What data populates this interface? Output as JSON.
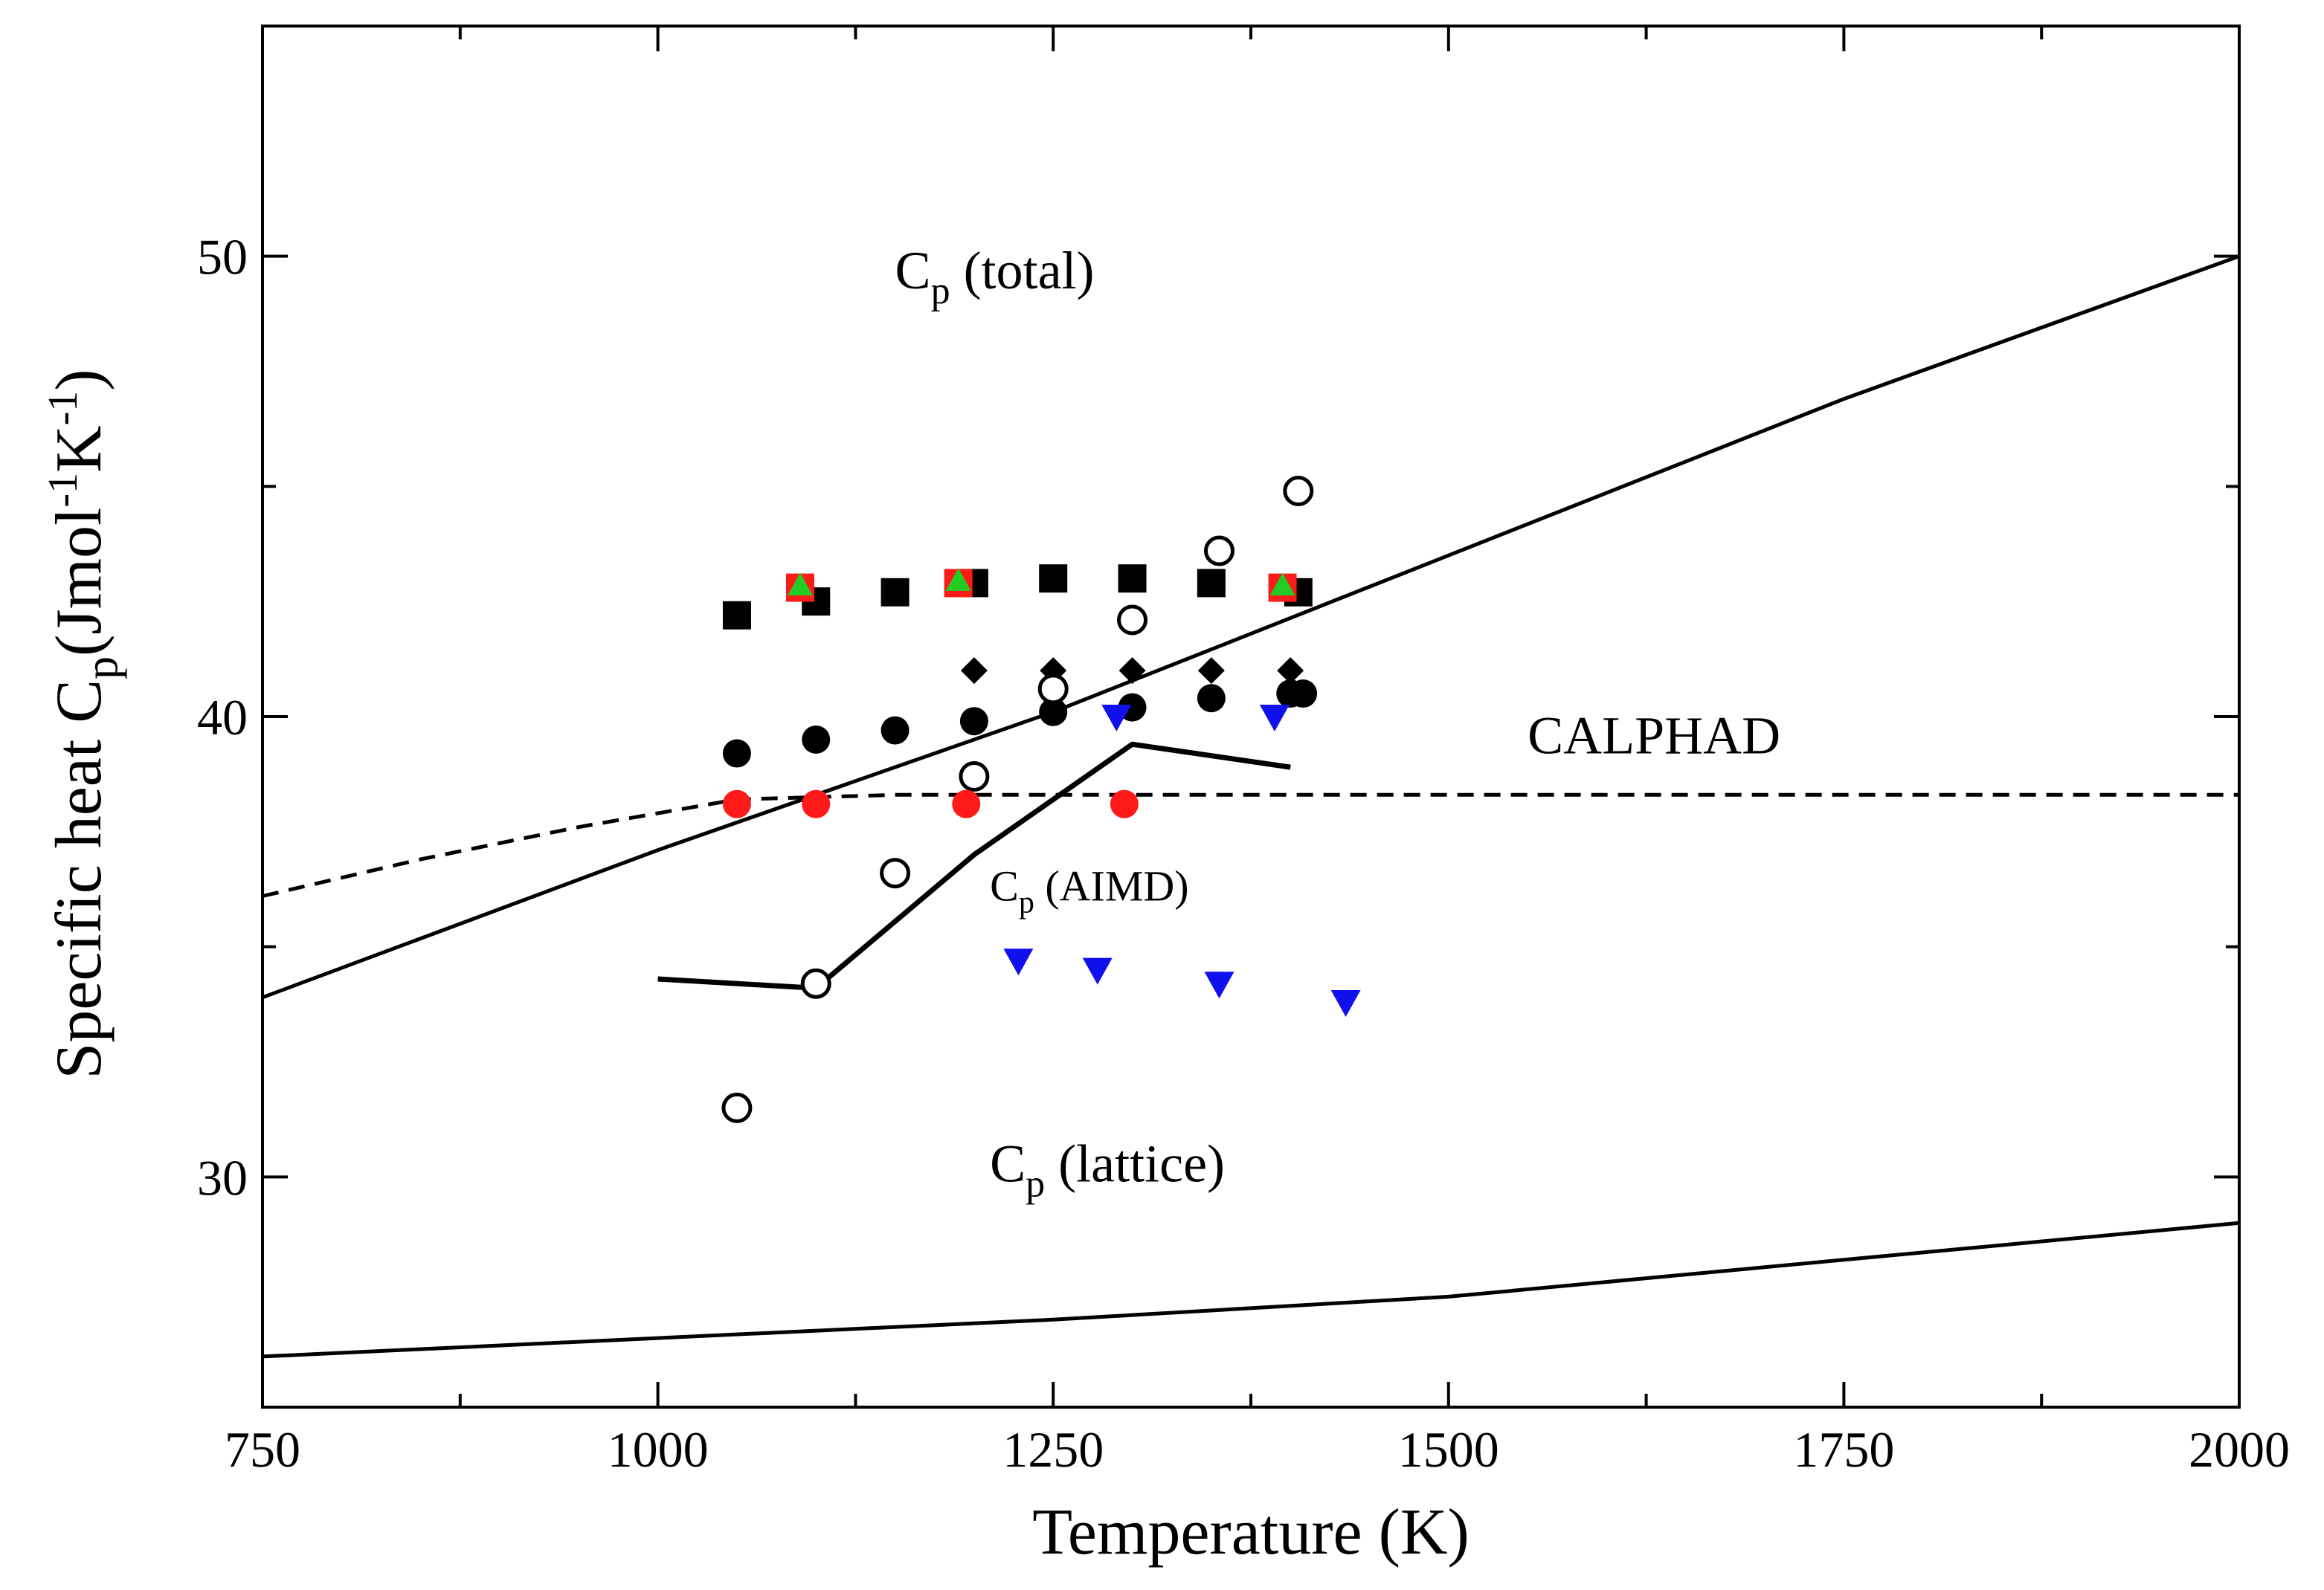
{
  "chart_data": {
    "type": "scatter",
    "title": "",
    "xlabel": "Temperature (K)",
    "ylabel": {
      "main": "Specific heat C",
      "sub": "p",
      "units": "(Jmol",
      "exp1": "-1",
      "k": "K",
      "exp2": "-1",
      "close": ")"
    },
    "xlim": [
      750,
      2000
    ],
    "ylim": [
      25,
      55
    ],
    "x_ticks": [
      750,
      1000,
      1250,
      1500,
      1750,
      2000
    ],
    "y_ticks": [
      30,
      40,
      50
    ],
    "grid": false,
    "colors": {
      "black": "#000000",
      "red": "#ff1a1a",
      "green": "#22cc22",
      "blue": "#1010ee"
    },
    "lines": [
      {
        "name": "Cp (total)",
        "style": "solid",
        "x": [
          750,
          1000,
          1250,
          1500,
          1750,
          2000
        ],
        "y": [
          33.9,
          37.1,
          40.1,
          43.5,
          46.9,
          50.0
        ]
      },
      {
        "name": "CALPHAD",
        "style": "dashed",
        "x": [
          750,
          850,
          950,
          1050,
          1150,
          1250,
          1500,
          1750,
          2000
        ],
        "y": [
          36.1,
          36.9,
          37.6,
          38.2,
          38.3,
          38.3,
          38.3,
          38.3,
          38.3
        ]
      },
      {
        "name": "Cp (AIMD)",
        "style": "solid-thick",
        "x": [
          1000,
          1100,
          1200,
          1300,
          1400
        ],
        "y": [
          34.3,
          34.1,
          37.0,
          39.4,
          38.9
        ]
      },
      {
        "name": "Cp (lattice)",
        "style": "solid",
        "x": [
          750,
          1000,
          1250,
          1500,
          1750,
          2000
        ],
        "y": [
          26.1,
          26.5,
          26.9,
          27.4,
          28.2,
          29.0
        ]
      }
    ],
    "series": [
      {
        "name": "black squares",
        "marker": "square",
        "color": "black",
        "x": [
          1050,
          1100,
          1150,
          1200,
          1250,
          1300,
          1350,
          1405
        ],
        "y": [
          42.2,
          42.5,
          42.7,
          42.9,
          43.0,
          43.0,
          42.9,
          42.7
        ]
      },
      {
        "name": "red squares",
        "marker": "square",
        "color": "red",
        "x": [
          1090,
          1190,
          1395
        ],
        "y": [
          42.8,
          42.9,
          42.8
        ]
      },
      {
        "name": "green triangles",
        "marker": "triangle-up",
        "color": "green",
        "x": [
          1090,
          1190,
          1395
        ],
        "y": [
          42.85,
          42.95,
          42.85
        ]
      },
      {
        "name": "black diamonds",
        "marker": "diamond",
        "color": "black",
        "x": [
          1200,
          1250,
          1300,
          1350,
          1400
        ],
        "y": [
          41.0,
          41.0,
          41.0,
          41.0,
          41.0
        ]
      },
      {
        "name": "black filled circles",
        "marker": "circle-filled",
        "color": "black",
        "x": [
          1050,
          1100,
          1150,
          1200,
          1250,
          1300,
          1350,
          1400,
          1408
        ],
        "y": [
          39.2,
          39.5,
          39.7,
          39.9,
          40.1,
          40.2,
          40.4,
          40.5,
          40.5
        ]
      },
      {
        "name": "open circles",
        "marker": "circle-open",
        "color": "black",
        "x": [
          1050,
          1100,
          1150,
          1200,
          1250,
          1300,
          1355,
          1405
        ],
        "y": [
          31.5,
          34.2,
          36.6,
          38.7,
          40.6,
          42.1,
          43.6,
          44.9
        ]
      },
      {
        "name": "red circles",
        "marker": "circle-filled",
        "color": "red",
        "x": [
          1050,
          1100,
          1195,
          1295
        ],
        "y": [
          38.1,
          38.1,
          38.1,
          38.1
        ]
      },
      {
        "name": "blue triangles (upper)",
        "marker": "triangle-down",
        "color": "blue",
        "x": [
          1290,
          1390
        ],
        "y": [
          40.0,
          40.0
        ]
      },
      {
        "name": "blue triangles (lower)",
        "marker": "triangle-down",
        "color": "blue",
        "x": [
          1228,
          1278,
          1355,
          1435
        ],
        "y": [
          34.7,
          34.5,
          34.2,
          33.8
        ]
      }
    ],
    "annotations": [
      {
        "id": "cp_total",
        "base": "C",
        "sub": "p",
        "rest": " (total)",
        "x": 1150,
        "y": 49.3,
        "size": "large"
      },
      {
        "id": "calphad",
        "base": "CALPHAD",
        "sub": "",
        "rest": "",
        "x": 1550,
        "y": 39.2,
        "size": "large"
      },
      {
        "id": "cp_aimd",
        "base": "C",
        "sub": "p",
        "rest": " (AIMD)",
        "x": 1210,
        "y": 36.0,
        "size": "small"
      },
      {
        "id": "cp_lattice",
        "base": "C",
        "sub": "p",
        "rest": " (lattice)",
        "x": 1210,
        "y": 29.9,
        "size": "large"
      }
    ]
  }
}
